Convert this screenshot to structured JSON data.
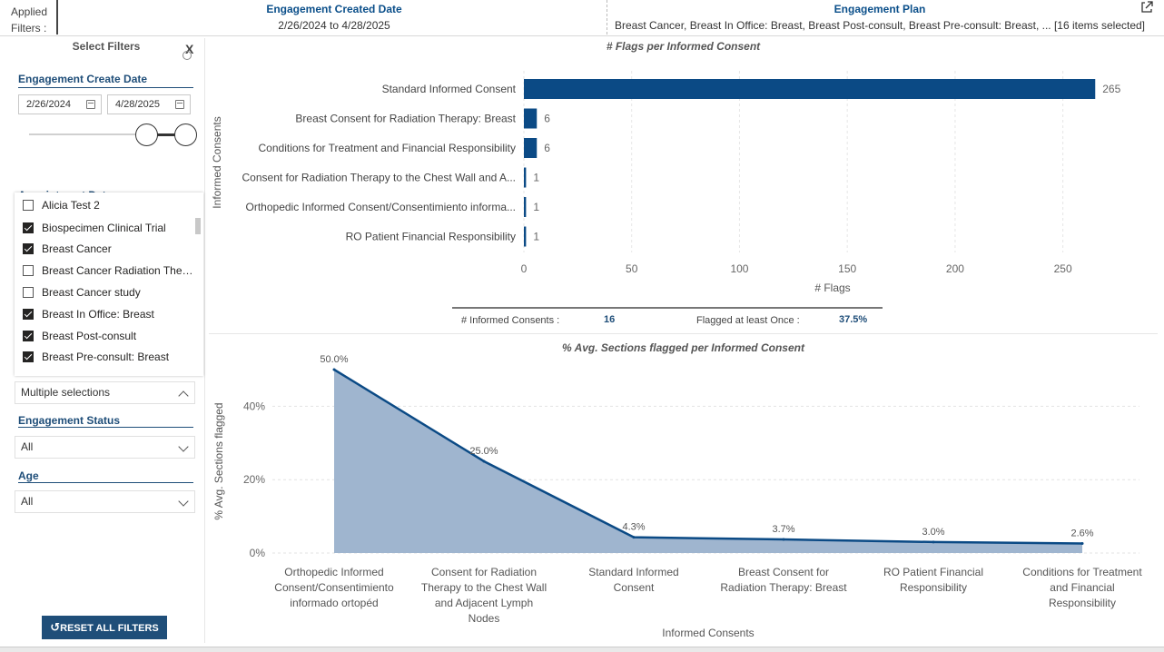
{
  "applied_filters": {
    "label_line1": "Applied",
    "label_line2": "Filters :",
    "items": [
      {
        "title": "Engagement Created Date",
        "value": "2/26/2024 to 4/28/2025"
      },
      {
        "title": "Engagement Plan",
        "value": "Breast Cancer, Breast In Office: Breast, Breast Post-consult, Breast Pre-consult: Breast, ... [16 items selected]"
      }
    ]
  },
  "filter_pane": {
    "title": "Select Filters",
    "close_label": "X",
    "engagement_create_date": {
      "title": "Engagement Create Date",
      "start": "2/26/2024",
      "end": "4/28/2025"
    },
    "hidden_section_title": "Appointment Date",
    "plan_list": [
      {
        "label": "Alicia Test 2",
        "checked": false
      },
      {
        "label": "Biospecimen Clinical Trial",
        "checked": true
      },
      {
        "label": "Breast Cancer",
        "checked": true
      },
      {
        "label": "Breast Cancer Radiation Therapy",
        "checked": false
      },
      {
        "label": "Breast Cancer study",
        "checked": false
      },
      {
        "label": "Breast In Office: Breast",
        "checked": true
      },
      {
        "label": "Breast Post-consult",
        "checked": true
      },
      {
        "label": "Breast Pre-consult: Breast",
        "checked": true
      }
    ],
    "plan_dropdown_value": "Multiple selections",
    "engagement_status": {
      "title": "Engagement Status",
      "value": "All"
    },
    "age": {
      "title": "Age",
      "value": "All"
    },
    "reset_label": "RESET ALL FILTERS"
  },
  "kpis": {
    "informed_consents_label": "# Informed Consents :",
    "informed_consents_value": "16",
    "flagged_label": "Flagged at least Once :",
    "flagged_value": "37.5%"
  },
  "colors": {
    "bar": "#0b4a85",
    "area_fill": "#9fb5cf",
    "area_line": "#0b4a85"
  },
  "chart_data": [
    {
      "type": "bar",
      "orientation": "horizontal",
      "title": "# Flags per Informed Consent",
      "xlabel": "# Flags",
      "ylabel": "Informed Consents",
      "categories": [
        "Standard Informed Consent",
        "Breast Consent for Radiation Therapy: Breast",
        "Conditions for Treatment and Financial Responsibility",
        "Consent for Radiation Therapy to the Chest Wall and A...",
        "Orthopedic Informed Consent/Consentimiento informa...",
        "RO Patient Financial Responsibility"
      ],
      "values": [
        265,
        6,
        6,
        1,
        1,
        1
      ],
      "xlim": [
        0,
        275
      ],
      "xticks": [
        0,
        50,
        100,
        150,
        200,
        250
      ],
      "grid": true
    },
    {
      "type": "area",
      "title": "% Avg. Sections flagged per Informed Consent",
      "xlabel": "Informed Consents",
      "ylabel": "% Avg. Sections flagged",
      "categories": [
        [
          "Orthopedic Informed",
          "Consent/Consentimiento",
          "informado ortopéd"
        ],
        [
          "Consent for Radiation",
          "Therapy to the Chest Wall",
          "and Adjacent Lymph",
          "Nodes"
        ],
        [
          "Standard Informed",
          "Consent"
        ],
        [
          "Breast Consent for",
          "Radiation Therapy: Breast"
        ],
        [
          "RO Patient Financial",
          "Responsibility"
        ],
        [
          "Conditions for Treatment",
          "and Financial",
          "Responsibility"
        ]
      ],
      "values": [
        50.0,
        25.0,
        4.3,
        3.7,
        3.0,
        2.6
      ],
      "value_labels": [
        "50.0%",
        "25.0%",
        "4.3%",
        "3.7%",
        "3.0%",
        "2.6%"
      ],
      "ylim": [
        0,
        50
      ],
      "yticks": [
        0,
        20,
        40
      ],
      "ytick_labels": [
        "0%",
        "20%",
        "40%"
      ],
      "grid": true
    }
  ]
}
